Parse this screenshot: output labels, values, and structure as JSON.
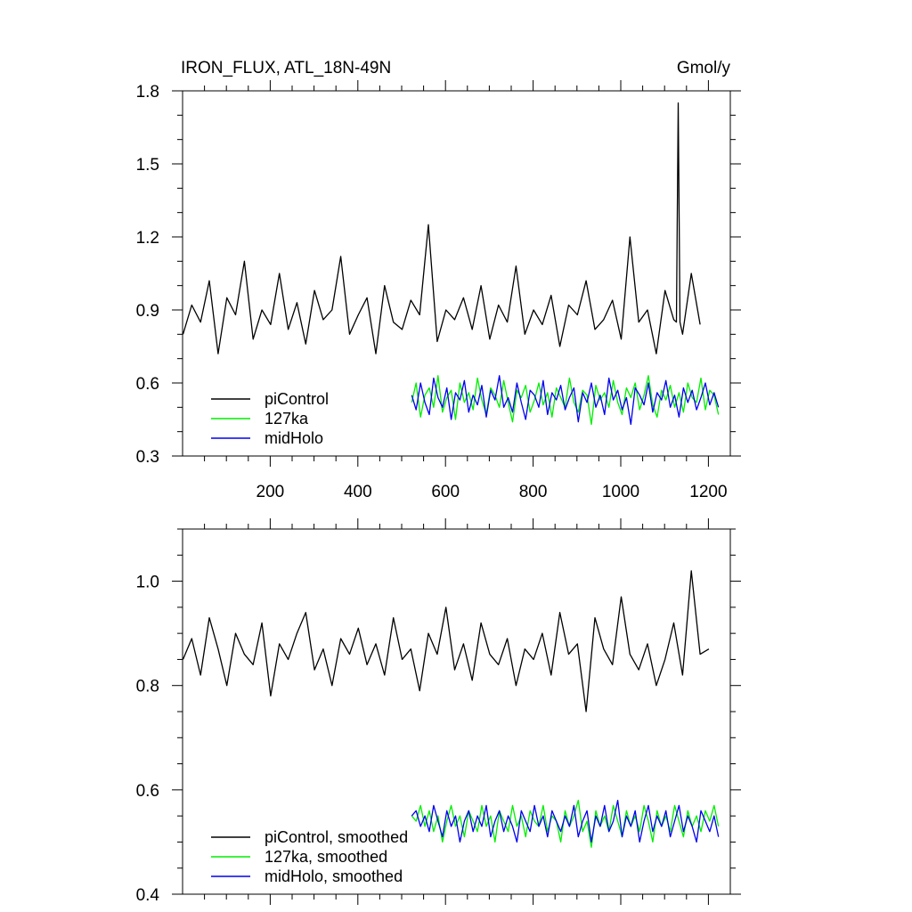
{
  "title_left": "IRON_FLUX, ATL_18N-49N",
  "title_right": "Gmol/y",
  "series_colors": {
    "piControl": "#000000",
    "127ka": "#00ee00",
    "midHolo": "#0000ee"
  },
  "chart_data": [
    {
      "type": "line",
      "title": "IRON_FLUX, ATL_18N-49N",
      "units": "Gmol/y",
      "xlim": [
        0,
        1250
      ],
      "ylim": [
        0.3,
        1.8
      ],
      "x_ticks": [
        200,
        400,
        600,
        800,
        1000,
        1200
      ],
      "x_tick_labels": [
        "200",
        "400",
        "600",
        "800",
        "1000",
        "1200"
      ],
      "y_ticks": [
        0.3,
        0.6,
        0.9,
        1.2,
        1.5,
        1.8
      ],
      "y_tick_labels": [
        "0.3",
        "0.6",
        "0.9",
        "1.2",
        "1.5",
        "1.8"
      ],
      "legend_position": "bottom-left",
      "series": [
        {
          "name": "piControl",
          "color": "#000000",
          "x_start": 1,
          "x_step": 20,
          "values": [
            0.8,
            0.92,
            0.85,
            1.02,
            0.72,
            0.95,
            0.88,
            1.1,
            0.78,
            0.9,
            0.84,
            1.05,
            0.82,
            0.93,
            0.76,
            0.98,
            0.86,
            0.9,
            1.12,
            0.8,
            0.88,
            0.95,
            0.72,
            1.0,
            0.85,
            0.82,
            0.94,
            0.88,
            1.25,
            0.77,
            0.9,
            0.86,
            0.95,
            0.82,
            1.0,
            0.78,
            0.92,
            0.85,
            1.08,
            0.8,
            0.9,
            0.84,
            0.96,
            0.75,
            0.92,
            0.88,
            1.02,
            0.82,
            0.86,
            0.94,
            0.78,
            1.2,
            0.85,
            0.9,
            0.72,
            0.98,
            0.86,
            0.8,
            1.05,
            0.84
          ],
          "peak": {
            "x": 1131,
            "y": 1.75
          }
        },
        {
          "name": "127ka",
          "color": "#00ee00",
          "x_start": 523,
          "x_step": 10,
          "values": [
            0.52,
            0.6,
            0.46,
            0.55,
            0.58,
            0.5,
            0.63,
            0.48,
            0.54,
            0.57,
            0.45,
            0.6,
            0.52,
            0.56,
            0.49,
            0.62,
            0.53,
            0.47,
            0.58,
            0.55,
            0.5,
            0.61,
            0.52,
            0.44,
            0.57,
            0.54,
            0.59,
            0.48,
            0.53,
            0.6,
            0.51,
            0.56,
            0.46,
            0.58,
            0.54,
            0.5,
            0.62,
            0.52,
            0.48,
            0.57,
            0.55,
            0.43,
            0.59,
            0.53,
            0.56,
            0.5,
            0.61,
            0.52,
            0.47,
            0.58,
            0.54,
            0.6,
            0.49,
            0.55,
            0.63,
            0.51,
            0.46,
            0.57,
            0.53,
            0.59,
            0.5,
            0.56,
            0.48,
            0.6,
            0.54,
            0.52,
            0.62,
            0.49,
            0.57,
            0.55,
            0.47
          ]
        },
        {
          "name": "midHolo",
          "color": "#0000ee",
          "x_start": 523,
          "x_step": 10,
          "values": [
            0.55,
            0.49,
            0.6,
            0.52,
            0.47,
            0.62,
            0.54,
            0.5,
            0.58,
            0.45,
            0.56,
            0.53,
            0.61,
            0.48,
            0.55,
            0.51,
            0.59,
            0.46,
            0.57,
            0.53,
            0.63,
            0.5,
            0.54,
            0.48,
            0.6,
            0.52,
            0.45,
            0.57,
            0.55,
            0.5,
            0.61,
            0.47,
            0.56,
            0.53,
            0.59,
            0.49,
            0.54,
            0.58,
            0.44,
            0.56,
            0.52,
            0.6,
            0.5,
            0.55,
            0.47,
            0.62,
            0.53,
            0.57,
            0.49,
            0.54,
            0.43,
            0.58,
            0.55,
            0.51,
            0.6,
            0.48,
            0.56,
            0.53,
            0.61,
            0.5,
            0.55,
            0.46,
            0.58,
            0.52,
            0.57,
            0.49,
            0.54,
            0.6,
            0.51,
            0.56,
            0.5
          ]
        }
      ]
    },
    {
      "type": "line",
      "xlim": [
        0,
        1250
      ],
      "ylim": [
        0.4,
        1.1
      ],
      "y_ticks": [
        0.4,
        0.6,
        0.8,
        1.0
      ],
      "y_tick_labels": [
        "0.4",
        "0.6",
        "0.8",
        "1.0"
      ],
      "legend_position": "bottom-left",
      "series": [
        {
          "name": "piControl, smoothed",
          "color": "#000000",
          "x_start": 1,
          "x_step": 20,
          "values": [
            0.85,
            0.89,
            0.82,
            0.93,
            0.87,
            0.8,
            0.9,
            0.86,
            0.84,
            0.92,
            0.78,
            0.88,
            0.85,
            0.9,
            0.94,
            0.83,
            0.87,
            0.8,
            0.89,
            0.86,
            0.91,
            0.84,
            0.88,
            0.82,
            0.93,
            0.85,
            0.87,
            0.79,
            0.9,
            0.86,
            0.95,
            0.83,
            0.88,
            0.81,
            0.92,
            0.86,
            0.84,
            0.89,
            0.8,
            0.87,
            0.85,
            0.9,
            0.82,
            0.94,
            0.86,
            0.88,
            0.75,
            0.93,
            0.87,
            0.84,
            0.97,
            0.86,
            0.83,
            0.88,
            0.8,
            0.85,
            0.92,
            0.82,
            1.02,
            0.86,
            0.87
          ]
        },
        {
          "name": "127ka, smoothed",
          "color": "#00ee00",
          "x_start": 523,
          "x_step": 10,
          "values": [
            0.55,
            0.54,
            0.57,
            0.53,
            0.56,
            0.52,
            0.55,
            0.5,
            0.54,
            0.57,
            0.53,
            0.55,
            0.51,
            0.56,
            0.54,
            0.52,
            0.57,
            0.53,
            0.55,
            0.5,
            0.56,
            0.54,
            0.52,
            0.57,
            0.53,
            0.55,
            0.51,
            0.56,
            0.54,
            0.53,
            0.57,
            0.52,
            0.55,
            0.54,
            0.5,
            0.56,
            0.53,
            0.55,
            0.58,
            0.52,
            0.54,
            0.49,
            0.56,
            0.53,
            0.55,
            0.52,
            0.57,
            0.54,
            0.51,
            0.56,
            0.53,
            0.55,
            0.52,
            0.57,
            0.54,
            0.5,
            0.56,
            0.53,
            0.55,
            0.52,
            0.57,
            0.54,
            0.51,
            0.56,
            0.53,
            0.55,
            0.52,
            0.56,
            0.54,
            0.57,
            0.53
          ]
        },
        {
          "name": "midHolo, smoothed",
          "color": "#0000ee",
          "x_start": 523,
          "x_step": 10,
          "values": [
            0.55,
            0.56,
            0.53,
            0.55,
            0.52,
            0.57,
            0.54,
            0.51,
            0.56,
            0.53,
            0.55,
            0.5,
            0.54,
            0.56,
            0.52,
            0.55,
            0.53,
            0.57,
            0.51,
            0.54,
            0.56,
            0.52,
            0.55,
            0.53,
            0.5,
            0.56,
            0.54,
            0.52,
            0.57,
            0.53,
            0.55,
            0.51,
            0.56,
            0.54,
            0.52,
            0.55,
            0.53,
            0.57,
            0.51,
            0.54,
            0.56,
            0.5,
            0.55,
            0.53,
            0.57,
            0.52,
            0.54,
            0.58,
            0.51,
            0.55,
            0.53,
            0.56,
            0.5,
            0.54,
            0.57,
            0.52,
            0.55,
            0.53,
            0.56,
            0.51,
            0.54,
            0.57,
            0.52,
            0.55,
            0.53,
            0.5,
            0.56,
            0.54,
            0.52,
            0.55,
            0.51
          ]
        }
      ]
    }
  ]
}
